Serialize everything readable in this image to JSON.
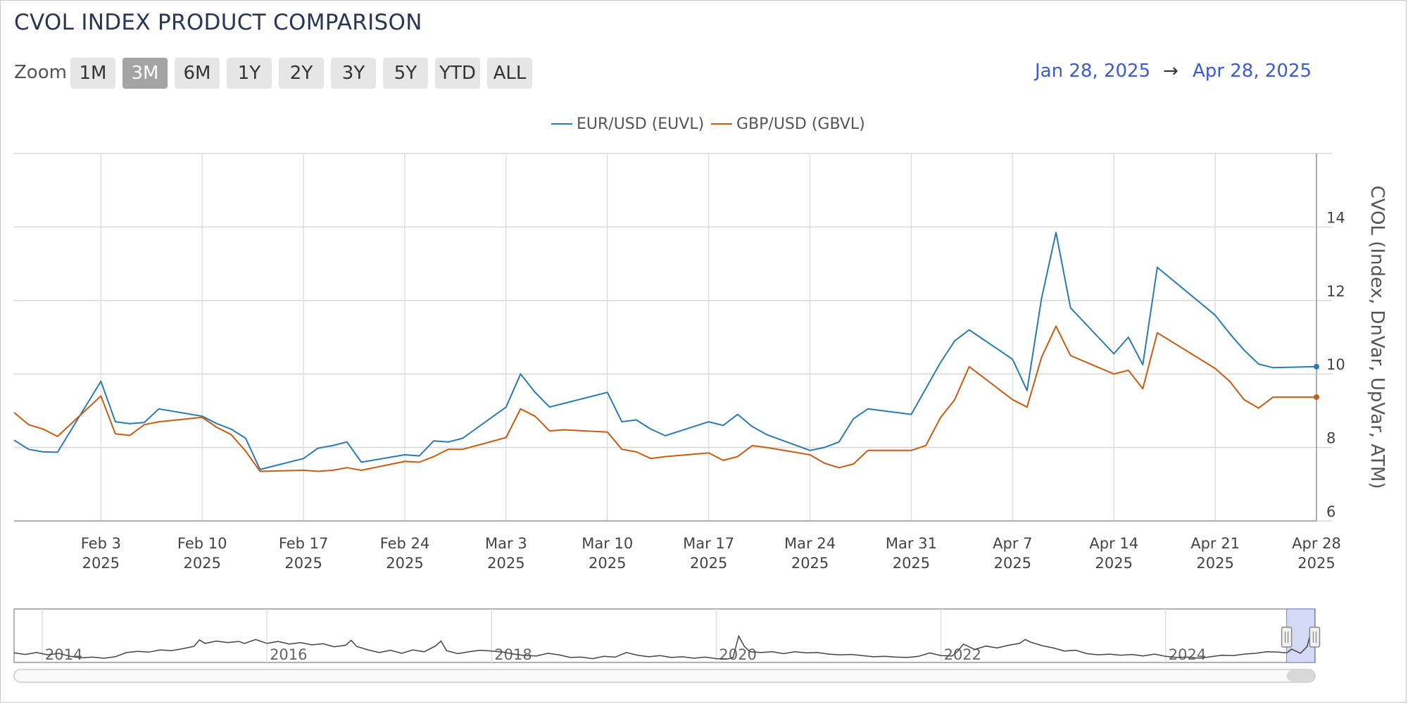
{
  "title": "CVOL INDEX PRODUCT COMPARISON",
  "zoom": {
    "label": "Zoom",
    "buttons": [
      "1M",
      "3M",
      "6M",
      "1Y",
      "2Y",
      "3Y",
      "5Y",
      "YTD",
      "ALL"
    ],
    "selected": "3M"
  },
  "date_range": {
    "from": "Jan 28, 2025",
    "arrow": "→",
    "to": "Apr 28, 2025"
  },
  "colors": {
    "eur": "#2b7bb0",
    "gbp": "#c85c14",
    "accent": "#3e59d8",
    "navigator_mask": "#ccd2f5"
  },
  "chart_data": {
    "type": "line",
    "title": "CVOL INDEX PRODUCT COMPARISON",
    "xlabel": "",
    "ylabel": "CVOL (Index, DnVar, UpVar, ATM)",
    "ylim": [
      6,
      16
    ],
    "yticks": [
      6,
      8,
      10,
      12,
      14
    ],
    "x_ticks": [
      {
        "date": "2025-02-03",
        "label1": "Feb 3",
        "label2": "2025"
      },
      {
        "date": "2025-02-10",
        "label1": "Feb 10",
        "label2": "2025"
      },
      {
        "date": "2025-02-17",
        "label1": "Feb 17",
        "label2": "2025"
      },
      {
        "date": "2025-02-24",
        "label1": "Feb 24",
        "label2": "2025"
      },
      {
        "date": "2025-03-03",
        "label1": "Mar 3",
        "label2": "2025"
      },
      {
        "date": "2025-03-10",
        "label1": "Mar 10",
        "label2": "2025"
      },
      {
        "date": "2025-03-17",
        "label1": "Mar 17",
        "label2": "2025"
      },
      {
        "date": "2025-03-24",
        "label1": "Mar 24",
        "label2": "2025"
      },
      {
        "date": "2025-03-31",
        "label1": "Mar 31",
        "label2": "2025"
      },
      {
        "date": "2025-04-07",
        "label1": "Apr 7",
        "label2": "2025"
      },
      {
        "date": "2025-04-14",
        "label1": "Apr 14",
        "label2": "2025"
      },
      {
        "date": "2025-04-21",
        "label1": "Apr 21",
        "label2": "2025"
      },
      {
        "date": "2025-04-28",
        "label1": "Apr 28",
        "label2": "2025"
      }
    ],
    "x": [
      "2025-01-28",
      "2025-01-29",
      "2025-01-30",
      "2025-01-31",
      "2025-02-03",
      "2025-02-04",
      "2025-02-05",
      "2025-02-06",
      "2025-02-07",
      "2025-02-10",
      "2025-02-11",
      "2025-02-12",
      "2025-02-13",
      "2025-02-14",
      "2025-02-17",
      "2025-02-18",
      "2025-02-19",
      "2025-02-20",
      "2025-02-21",
      "2025-02-24",
      "2025-02-25",
      "2025-02-26",
      "2025-02-27",
      "2025-02-28",
      "2025-03-03",
      "2025-03-04",
      "2025-03-05",
      "2025-03-06",
      "2025-03-07",
      "2025-03-10",
      "2025-03-11",
      "2025-03-12",
      "2025-03-13",
      "2025-03-14",
      "2025-03-17",
      "2025-03-18",
      "2025-03-19",
      "2025-03-20",
      "2025-03-21",
      "2025-03-24",
      "2025-03-25",
      "2025-03-26",
      "2025-03-27",
      "2025-03-28",
      "2025-03-31",
      "2025-04-01",
      "2025-04-02",
      "2025-04-03",
      "2025-04-04",
      "2025-04-07",
      "2025-04-08",
      "2025-04-09",
      "2025-04-10",
      "2025-04-11",
      "2025-04-14",
      "2025-04-15",
      "2025-04-16",
      "2025-04-17",
      "2025-04-21",
      "2025-04-22",
      "2025-04-23",
      "2025-04-24",
      "2025-04-25",
      "2025-04-28"
    ],
    "series": [
      {
        "name": "EUR/USD (EUVL)",
        "color": "#2b7bb0",
        "values": [
          8.2,
          7.95,
          7.88,
          7.87,
          9.8,
          8.7,
          8.65,
          8.68,
          9.05,
          8.85,
          8.65,
          8.5,
          8.25,
          7.4,
          7.7,
          7.98,
          8.05,
          8.15,
          7.6,
          7.8,
          7.77,
          8.18,
          8.15,
          8.25,
          9.1,
          10.0,
          9.5,
          9.1,
          9.2,
          9.5,
          8.7,
          8.75,
          8.5,
          8.32,
          8.7,
          8.6,
          8.9,
          8.57,
          8.35,
          7.92,
          8.0,
          8.15,
          8.78,
          9.05,
          8.9,
          9.6,
          10.3,
          10.9,
          11.2,
          10.4,
          9.55,
          12.05,
          13.85,
          11.8,
          10.55,
          11.0,
          10.25,
          12.9,
          11.6,
          11.1,
          10.65,
          10.27,
          10.17,
          10.2
        ],
        "end_value": 10.2
      },
      {
        "name": "GBP/USD (GBVL)",
        "color": "#c85c14",
        "values": [
          8.95,
          8.62,
          8.5,
          8.3,
          9.4,
          8.37,
          8.33,
          8.62,
          8.7,
          8.82,
          8.55,
          8.35,
          7.9,
          7.35,
          7.38,
          7.35,
          7.38,
          7.45,
          7.38,
          7.62,
          7.6,
          7.75,
          7.95,
          7.95,
          8.27,
          9.05,
          8.85,
          8.45,
          8.48,
          8.42,
          7.95,
          7.88,
          7.7,
          7.75,
          7.85,
          7.65,
          7.75,
          8.05,
          8.0,
          7.8,
          7.57,
          7.45,
          7.55,
          7.92,
          7.92,
          8.05,
          8.8,
          9.3,
          10.2,
          9.3,
          9.1,
          10.45,
          11.3,
          10.5,
          10.0,
          10.1,
          9.6,
          11.12,
          10.15,
          9.8,
          9.3,
          9.07,
          9.37,
          9.37
        ],
        "end_value": 9.37
      }
    ],
    "legend": {
      "position": "top-center",
      "entries": [
        "EUR/USD (EUVL)",
        "GBP/USD (GBVL)"
      ]
    },
    "grid": true
  },
  "navigator": {
    "year_labels": [
      "2014",
      "2016",
      "2018",
      "2020",
      "2022",
      "2024"
    ],
    "xlim": [
      2013.75,
      2025.33
    ],
    "selection": [
      "2025-01-28",
      "2025-04-28"
    ],
    "ylim": [
      6,
      20
    ],
    "series_points": [
      [
        2013.75,
        8.5
      ],
      [
        2013.85,
        8.1
      ],
      [
        2013.95,
        8.6
      ],
      [
        2014.05,
        8.0
      ],
      [
        2014.15,
        8.4
      ],
      [
        2014.25,
        7.6
      ],
      [
        2014.35,
        7.2
      ],
      [
        2014.45,
        7.4
      ],
      [
        2014.55,
        7.1
      ],
      [
        2014.65,
        7.5
      ],
      [
        2014.75,
        8.6
      ],
      [
        2014.85,
        8.9
      ],
      [
        2014.95,
        8.7
      ],
      [
        2015.05,
        9.3
      ],
      [
        2015.15,
        9.1
      ],
      [
        2015.25,
        9.6
      ],
      [
        2015.35,
        10.2
      ],
      [
        2015.4,
        11.9
      ],
      [
        2015.45,
        11.0
      ],
      [
        2015.55,
        11.6
      ],
      [
        2015.65,
        11.2
      ],
      [
        2015.75,
        11.5
      ],
      [
        2015.8,
        11.0
      ],
      [
        2015.9,
        12.0
      ],
      [
        2016.0,
        11.0
      ],
      [
        2016.1,
        11.5
      ],
      [
        2016.2,
        10.8
      ],
      [
        2016.3,
        11.2
      ],
      [
        2016.4,
        10.6
      ],
      [
        2016.5,
        10.9
      ],
      [
        2016.6,
        10.1
      ],
      [
        2016.7,
        10.5
      ],
      [
        2016.75,
        11.8
      ],
      [
        2016.8,
        10.2
      ],
      [
        2016.9,
        9.3
      ],
      [
        2017.0,
        8.6
      ],
      [
        2017.1,
        9.2
      ],
      [
        2017.2,
        8.4
      ],
      [
        2017.3,
        9.3
      ],
      [
        2017.4,
        8.8
      ],
      [
        2017.5,
        10.3
      ],
      [
        2017.55,
        11.6
      ],
      [
        2017.6,
        9.1
      ],
      [
        2017.7,
        8.3
      ],
      [
        2017.8,
        8.8
      ],
      [
        2017.9,
        9.2
      ],
      [
        2018.0,
        9.0
      ],
      [
        2018.1,
        8.7
      ],
      [
        2018.2,
        8.2
      ],
      [
        2018.3,
        7.8
      ],
      [
        2018.4,
        7.7
      ],
      [
        2018.5,
        8.4
      ],
      [
        2018.6,
        8.0
      ],
      [
        2018.7,
        7.3
      ],
      [
        2018.8,
        7.4
      ],
      [
        2018.9,
        7.0
      ],
      [
        2019.0,
        7.6
      ],
      [
        2019.1,
        7.4
      ],
      [
        2019.2,
        8.6
      ],
      [
        2019.3,
        7.9
      ],
      [
        2019.4,
        7.5
      ],
      [
        2019.5,
        7.8
      ],
      [
        2019.6,
        7.3
      ],
      [
        2019.7,
        7.5
      ],
      [
        2019.8,
        7.1
      ],
      [
        2019.9,
        7.4
      ],
      [
        2020.0,
        7.0
      ],
      [
        2020.1,
        6.9
      ],
      [
        2020.15,
        7.3
      ],
      [
        2020.2,
        12.9
      ],
      [
        2020.25,
        10.2
      ],
      [
        2020.3,
        8.8
      ],
      [
        2020.4,
        8.6
      ],
      [
        2020.5,
        8.8
      ],
      [
        2020.6,
        8.3
      ],
      [
        2020.7,
        8.8
      ],
      [
        2020.8,
        8.5
      ],
      [
        2020.9,
        8.6
      ],
      [
        2021.0,
        8.2
      ],
      [
        2021.1,
        8.0
      ],
      [
        2021.2,
        8.1
      ],
      [
        2021.3,
        7.8
      ],
      [
        2021.4,
        7.5
      ],
      [
        2021.5,
        7.6
      ],
      [
        2021.6,
        7.4
      ],
      [
        2021.7,
        7.3
      ],
      [
        2021.8,
        7.6
      ],
      [
        2021.9,
        8.5
      ],
      [
        2022.0,
        7.8
      ],
      [
        2022.1,
        7.7
      ],
      [
        2022.15,
        9.0
      ],
      [
        2022.2,
        10.8
      ],
      [
        2022.3,
        9.4
      ],
      [
        2022.4,
        10.3
      ],
      [
        2022.5,
        9.8
      ],
      [
        2022.6,
        10.5
      ],
      [
        2022.7,
        11.0
      ],
      [
        2022.75,
        12.0
      ],
      [
        2022.8,
        11.3
      ],
      [
        2022.9,
        10.4
      ],
      [
        2023.0,
        9.8
      ],
      [
        2023.1,
        9.0
      ],
      [
        2023.2,
        9.2
      ],
      [
        2023.3,
        8.3
      ],
      [
        2023.4,
        8.0
      ],
      [
        2023.5,
        8.2
      ],
      [
        2023.6,
        7.9
      ],
      [
        2023.7,
        8.1
      ],
      [
        2023.8,
        7.7
      ],
      [
        2023.9,
        8.2
      ],
      [
        2024.0,
        7.6
      ],
      [
        2024.1,
        7.3
      ],
      [
        2024.2,
        7.4
      ],
      [
        2024.3,
        7.1
      ],
      [
        2024.4,
        7.5
      ],
      [
        2024.5,
        7.9
      ],
      [
        2024.6,
        7.8
      ],
      [
        2024.7,
        8.2
      ],
      [
        2024.8,
        8.4
      ],
      [
        2024.9,
        8.8
      ],
      [
        2025.0,
        8.7
      ],
      [
        2025.08,
        8.5
      ],
      [
        2025.12,
        9.5
      ],
      [
        2025.2,
        8.4
      ],
      [
        2025.26,
        10.2
      ],
      [
        2025.28,
        12.5
      ],
      [
        2025.3,
        10.8
      ],
      [
        2025.33,
        10.2
      ]
    ]
  }
}
